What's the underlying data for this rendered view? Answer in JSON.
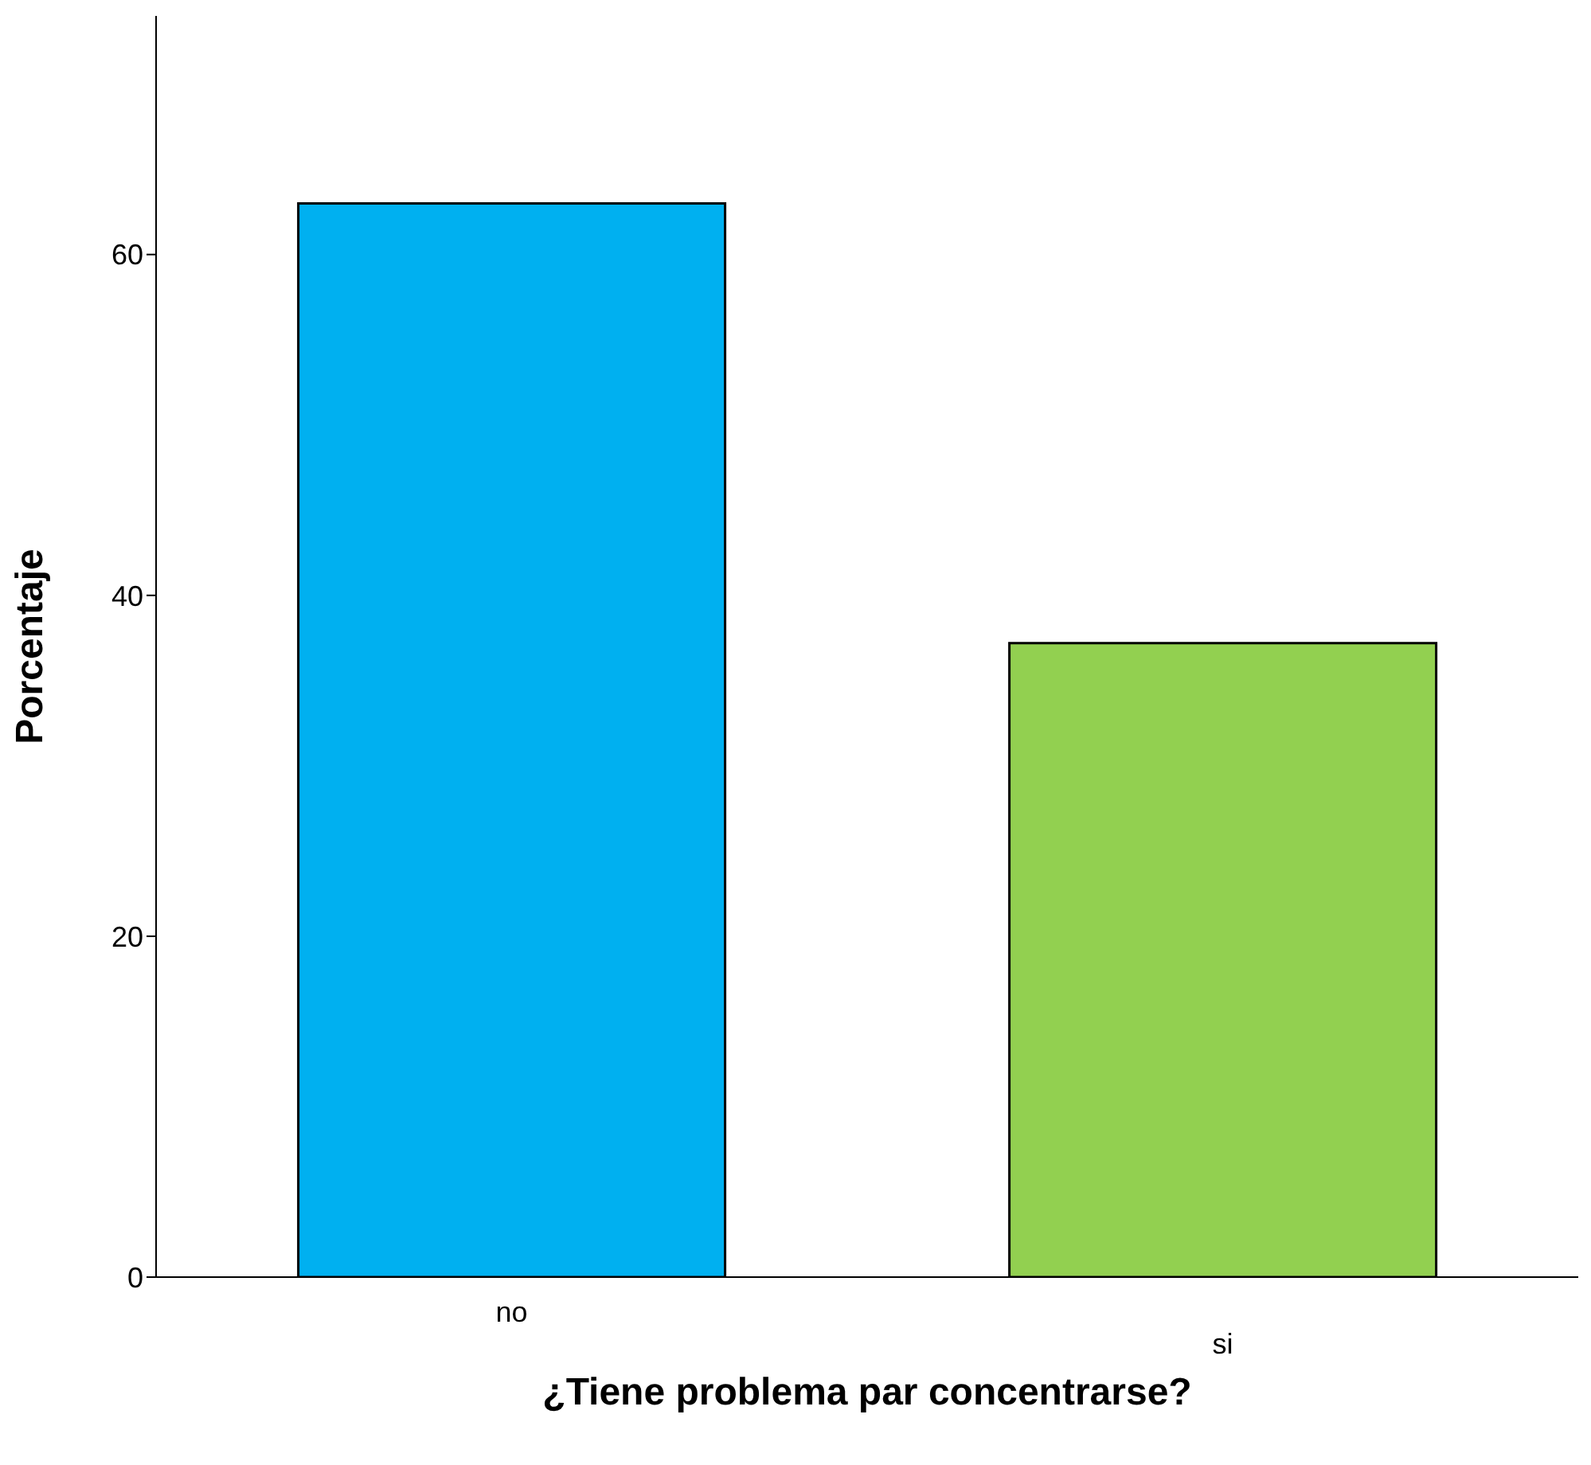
{
  "chart_data": {
    "type": "bar",
    "xlabel": "¿Tiene problema par concentrarse?",
    "ylabel": "Porcentaje",
    "categories": [
      "no",
      "si"
    ],
    "values": [
      63.0,
      37.2
    ],
    "colors": [
      "#00b0f0",
      "#92d050"
    ],
    "ylim": [
      0,
      74
    ],
    "yticks": [
      0,
      20,
      40,
      60
    ],
    "grid": false
  }
}
